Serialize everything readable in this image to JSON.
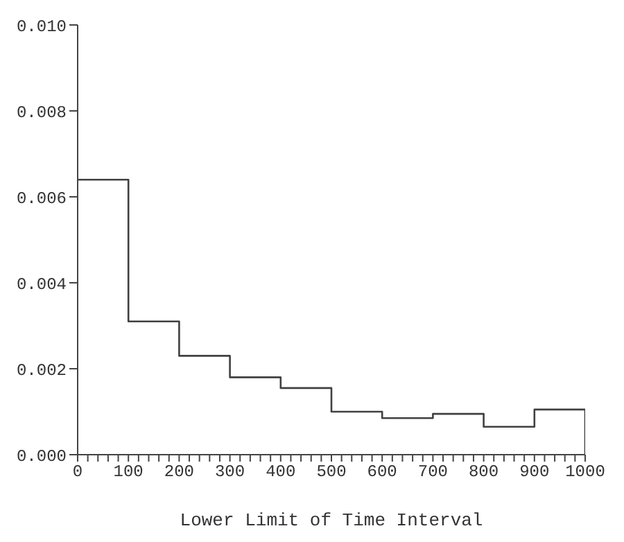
{
  "chart_data": {
    "type": "histogram",
    "xlabel": "Lower Limit of Time Interval",
    "color": "#404040",
    "bins": [
      0,
      100,
      200,
      300,
      400,
      500,
      600,
      700,
      800,
      900,
      1000
    ],
    "values": [
      0.0064,
      0.0031,
      0.0023,
      0.0018,
      0.00155,
      0.001,
      0.00085,
      0.00095,
      0.00065,
      0.00105
    ],
    "xlim": [
      0,
      1000
    ],
    "xticks": [
      0,
      {
        "value": 20,
        "label": null
      },
      {
        "value": 40,
        "label": null
      },
      {
        "value": 60,
        "label": null
      },
      {
        "value": 80,
        "label": null
      },
      100,
      {
        "value": 120,
        "label": null
      },
      {
        "value": 140,
        "label": null
      },
      {
        "value": 160,
        "label": null
      },
      {
        "value": 180,
        "label": null
      },
      200,
      {
        "value": 220,
        "label": null
      },
      {
        "value": 240,
        "label": null
      },
      {
        "value": 260,
        "label": null
      },
      {
        "value": 280,
        "label": null
      },
      300,
      {
        "value": 320,
        "label": null
      },
      {
        "value": 340,
        "label": null
      },
      {
        "value": 360,
        "label": null
      },
      {
        "value": 380,
        "label": null
      },
      400,
      {
        "value": 420,
        "label": null
      },
      {
        "value": 440,
        "label": null
      },
      {
        "value": 460,
        "label": null
      },
      {
        "value": 480,
        "label": null
      },
      500,
      {
        "value": 520,
        "label": null
      },
      {
        "value": 540,
        "label": null
      },
      {
        "value": 560,
        "label": null
      },
      {
        "value": 580,
        "label": null
      },
      600,
      {
        "value": 620,
        "label": null
      },
      {
        "value": 640,
        "label": null
      },
      {
        "value": 660,
        "label": null
      },
      {
        "value": 680,
        "label": null
      },
      700,
      {
        "value": 720,
        "label": null
      },
      {
        "value": 740,
        "label": null
      },
      {
        "value": 760,
        "label": null
      },
      {
        "value": 780,
        "label": null
      },
      800,
      {
        "value": 820,
        "label": null
      },
      {
        "value": 840,
        "label": null
      },
      {
        "value": 860,
        "label": null
      },
      {
        "value": 880,
        "label": null
      },
      900,
      {
        "value": 920,
        "label": null
      },
      {
        "value": 940,
        "label": null
      },
      {
        "value": 960,
        "label": null
      },
      {
        "value": 980,
        "label": null
      },
      1000
    ],
    "ylim": [
      0,
      0.01
    ],
    "yticks": [
      {
        "value": 0,
        "label": "0.000"
      },
      {
        "value": 0.002,
        "label": "0.002"
      },
      {
        "value": 0.004,
        "label": "0.004"
      },
      {
        "value": 0.006,
        "label": "0.006"
      },
      {
        "value": 0.008,
        "label": "0.008"
      },
      {
        "value": 0.01,
        "label": "0.010"
      }
    ],
    "grid": false,
    "legend": false
  }
}
